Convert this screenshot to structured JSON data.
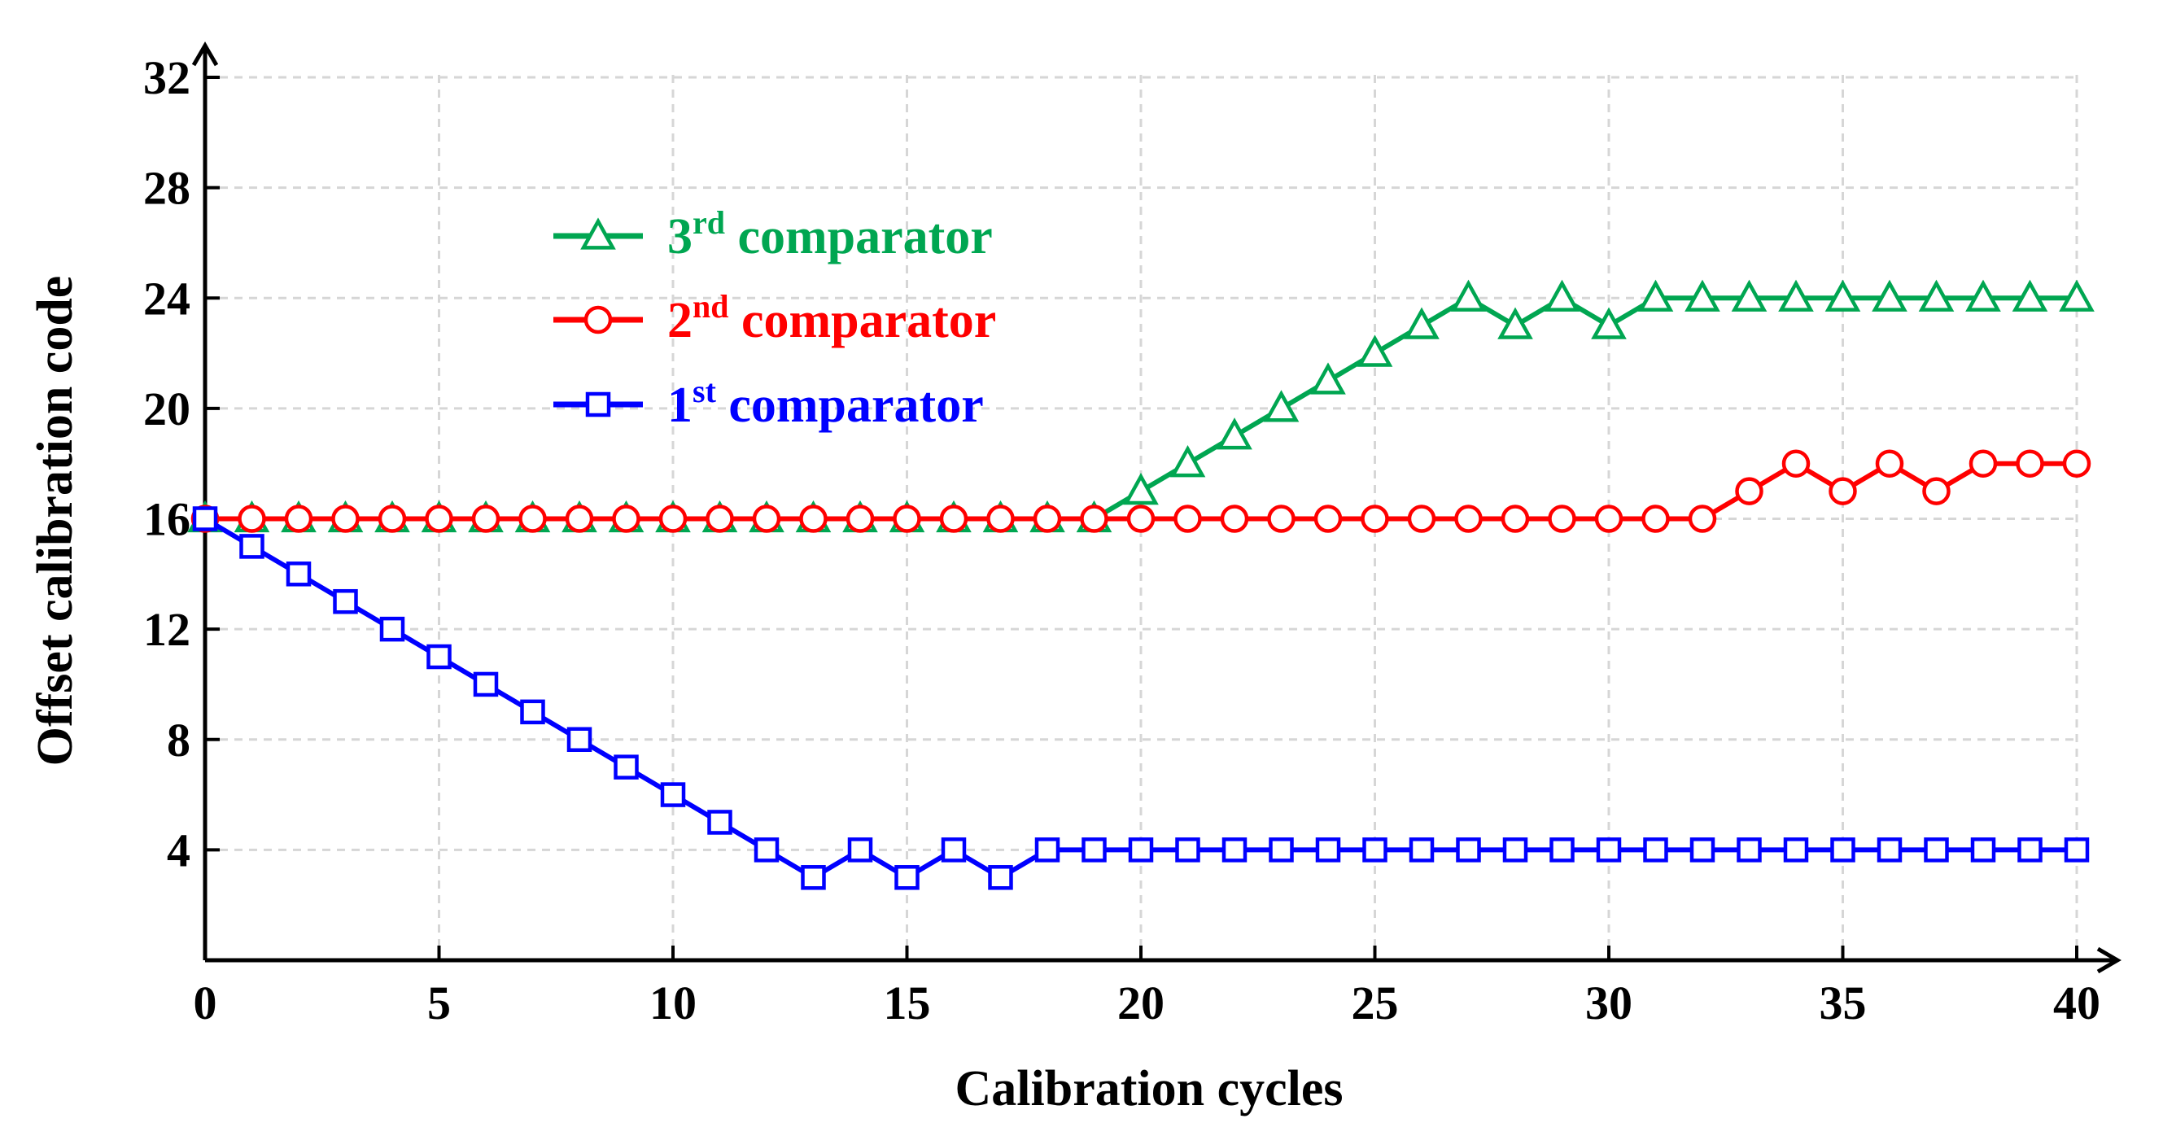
{
  "chart_data": {
    "type": "line",
    "title": "",
    "xlabel": "Calibration cycles",
    "ylabel": "Offset calibration code",
    "xlim": [
      0,
      40
    ],
    "ylim": [
      0,
      32
    ],
    "xticks": [
      0,
      5,
      10,
      15,
      20,
      25,
      30,
      35,
      40
    ],
    "yticks": [
      4,
      8,
      12,
      16,
      20,
      24,
      28,
      32
    ],
    "xtick_labels": [
      "0",
      "5",
      "10",
      "15",
      "20",
      "25",
      "30",
      "35",
      "40"
    ],
    "ytick_labels": [
      "4",
      "8",
      "12",
      "16",
      "20",
      "24",
      "28",
      "32"
    ],
    "grid": true,
    "legend_position": "upper-left",
    "x": [
      0,
      1,
      2,
      3,
      4,
      5,
      6,
      7,
      8,
      9,
      10,
      11,
      12,
      13,
      14,
      15,
      16,
      17,
      18,
      19,
      20,
      21,
      22,
      23,
      24,
      25,
      26,
      27,
      28,
      29,
      30,
      31,
      32,
      33,
      34,
      35,
      36,
      37,
      38,
      39,
      40
    ],
    "series": [
      {
        "name": "3rd comparator",
        "legend_main": "3",
        "legend_sup": "rd",
        "legend_rest": " comparator",
        "color": "#00a651",
        "marker": "triangle",
        "values": [
          16,
          16,
          16,
          16,
          16,
          16,
          16,
          16,
          16,
          16,
          16,
          16,
          16,
          16,
          16,
          16,
          16,
          16,
          16,
          16,
          17,
          18,
          19,
          20,
          21,
          22,
          23,
          24,
          23,
          24,
          23,
          24,
          24,
          24,
          24,
          24,
          24,
          24,
          24,
          24,
          24
        ]
      },
      {
        "name": "2nd comparator",
        "legend_main": "2",
        "legend_sup": "nd",
        "legend_rest": " comparator",
        "color": "#ff0000",
        "marker": "circle",
        "values": [
          16,
          16,
          16,
          16,
          16,
          16,
          16,
          16,
          16,
          16,
          16,
          16,
          16,
          16,
          16,
          16,
          16,
          16,
          16,
          16,
          16,
          16,
          16,
          16,
          16,
          16,
          16,
          16,
          16,
          16,
          16,
          16,
          16,
          17,
          18,
          17,
          18,
          17,
          18,
          18,
          18
        ]
      },
      {
        "name": "1st comparator",
        "legend_main": "1",
        "legend_sup": "st",
        "legend_rest": " comparator",
        "color": "#0000ff",
        "marker": "square",
        "values": [
          16,
          15,
          14,
          13,
          12,
          11,
          10,
          9,
          8,
          7,
          6,
          5,
          4,
          3,
          4,
          3,
          4,
          3,
          4,
          4,
          4,
          4,
          4,
          4,
          4,
          4,
          4,
          4,
          4,
          4,
          4,
          4,
          4,
          4,
          4,
          4,
          4,
          4,
          4,
          4,
          4
        ]
      }
    ]
  }
}
